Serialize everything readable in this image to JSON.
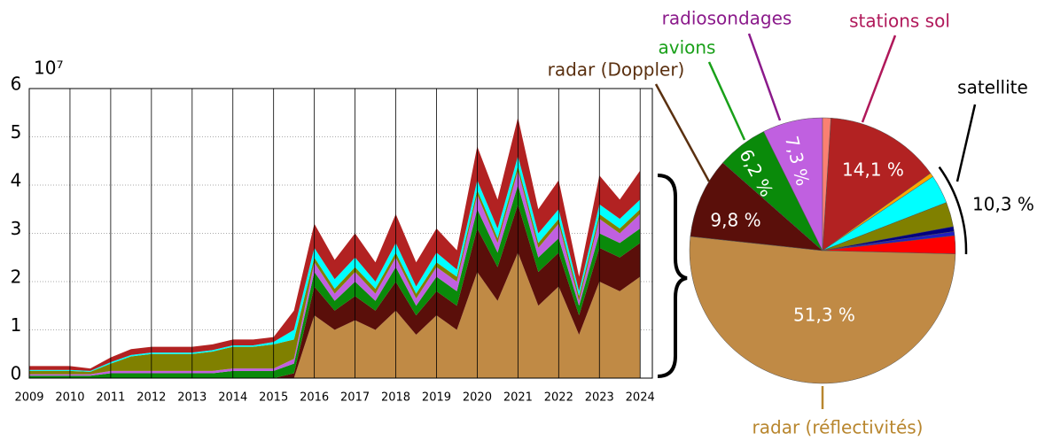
{
  "chart_data": [
    {
      "type": "area",
      "axis_unit": "10⁷",
      "x": [
        2009,
        2009.5,
        2010,
        2010.5,
        2011,
        2011.5,
        2012,
        2012.5,
        2013,
        2013.5,
        2014,
        2014.5,
        2015,
        2015.5,
        2016,
        2016.5,
        2017,
        2017.5,
        2018,
        2018.5,
        2019,
        2019.5,
        2020,
        2020.5,
        2021,
        2021.5,
        2022,
        2022.5,
        2023,
        2023.5,
        2024
      ],
      "series": [
        {
          "color": "#c08a45",
          "values": [
            0,
            0,
            0,
            0,
            0,
            0,
            0,
            0,
            0,
            0,
            0,
            0,
            0,
            0,
            1.3,
            1.0,
            1.2,
            1.0,
            1.4,
            0.9,
            1.3,
            1.0,
            2.2,
            1.6,
            2.6,
            1.5,
            1.9,
            0.9,
            2.0,
            1.8,
            2.1
          ]
        },
        {
          "color": "#5a0f0a",
          "values": [
            0,
            0,
            0,
            0,
            0,
            0,
            0,
            0,
            0,
            0,
            0,
            0,
            0,
            0.1,
            0.6,
            0.4,
            0.5,
            0.4,
            0.6,
            0.4,
            0.5,
            0.5,
            0.9,
            0.7,
            1.0,
            0.7,
            0.7,
            0.4,
            0.7,
            0.7,
            0.7
          ]
        },
        {
          "color": "#0a8a0a",
          "values": [
            0.05,
            0.05,
            0.05,
            0.05,
            0.1,
            0.1,
            0.1,
            0.1,
            0.1,
            0.1,
            0.15,
            0.15,
            0.15,
            0.2,
            0.3,
            0.2,
            0.3,
            0.2,
            0.3,
            0.2,
            0.3,
            0.3,
            0.4,
            0.3,
            0.4,
            0.3,
            0.3,
            0.2,
            0.3,
            0.3,
            0.3
          ]
        },
        {
          "color": "#c060e0",
          "values": [
            0.03,
            0.03,
            0.03,
            0.03,
            0.05,
            0.05,
            0.05,
            0.05,
            0.05,
            0.05,
            0.05,
            0.05,
            0.05,
            0.1,
            0.2,
            0.15,
            0.2,
            0.15,
            0.2,
            0.15,
            0.2,
            0.2,
            0.3,
            0.2,
            0.3,
            0.2,
            0.3,
            0.1,
            0.3,
            0.2,
            0.3
          ]
        },
        {
          "color": "#808000",
          "values": [
            0.07,
            0.07,
            0.07,
            0.05,
            0.15,
            0.3,
            0.35,
            0.35,
            0.35,
            0.4,
            0.45,
            0.45,
            0.5,
            0.4,
            0.1,
            0.1,
            0.1,
            0.1,
            0.1,
            0.1,
            0.1,
            0.1,
            0.1,
            0.1,
            0.1,
            0.1,
            0.1,
            0.1,
            0.1,
            0.1,
            0.1
          ]
        },
        {
          "color": "#00ffff",
          "values": [
            0.02,
            0.02,
            0.02,
            0.02,
            0.03,
            0.03,
            0.03,
            0.03,
            0.03,
            0.03,
            0.03,
            0.03,
            0.05,
            0.2,
            0.2,
            0.2,
            0.2,
            0.15,
            0.2,
            0.15,
            0.2,
            0.15,
            0.2,
            0.2,
            0.2,
            0.2,
            0.2,
            0.1,
            0.2,
            0.2,
            0.2
          ]
        },
        {
          "color": "#b22222",
          "values": [
            0.08,
            0.08,
            0.08,
            0.05,
            0.1,
            0.12,
            0.12,
            0.12,
            0.12,
            0.12,
            0.12,
            0.12,
            0.1,
            0.4,
            0.5,
            0.4,
            0.5,
            0.4,
            0.6,
            0.5,
            0.5,
            0.4,
            0.7,
            0.6,
            0.8,
            0.5,
            0.6,
            0.3,
            0.6,
            0.4,
            0.6
          ]
        }
      ],
      "xlim": [
        2009,
        2024.3
      ],
      "xticks": [
        2009,
        2010,
        2011,
        2012,
        2013,
        2014,
        2015,
        2016,
        2017,
        2018,
        2019,
        2020,
        2021,
        2022,
        2023,
        2024
      ],
      "ylim": [
        0,
        6
      ],
      "yticks": [
        0,
        1,
        2,
        3,
        4,
        5,
        6
      ],
      "grid": true
    },
    {
      "type": "pie",
      "categories": [
        "stations sol",
        null,
        null,
        null,
        null,
        null,
        null,
        "radar (réflectivités)",
        "radar (Doppler)",
        "avions",
        "radiosondages",
        null
      ],
      "values": [
        14.1,
        0.5,
        3.5,
        3.0,
        0.6,
        0.5,
        2.2,
        51.3,
        9.8,
        6.2,
        7.3,
        1.0
      ],
      "value_labels": [
        "14,1 %",
        null,
        null,
        null,
        null,
        null,
        null,
        "51,3 %",
        "9,8 %",
        "6,2 %",
        "7,3 %",
        null
      ],
      "colors": [
        "#b22222",
        "#ffa500",
        "#00ffff",
        "#808000",
        "#000080",
        "#2020c0",
        "#ff0000",
        "#c08a45",
        "#5a0f0a",
        "#0a8a0a",
        "#c060e0",
        "#fa8072"
      ],
      "groups": [
        {
          "name": "satellite",
          "value": 10.3,
          "label": "10,3 %"
        }
      ]
    }
  ]
}
